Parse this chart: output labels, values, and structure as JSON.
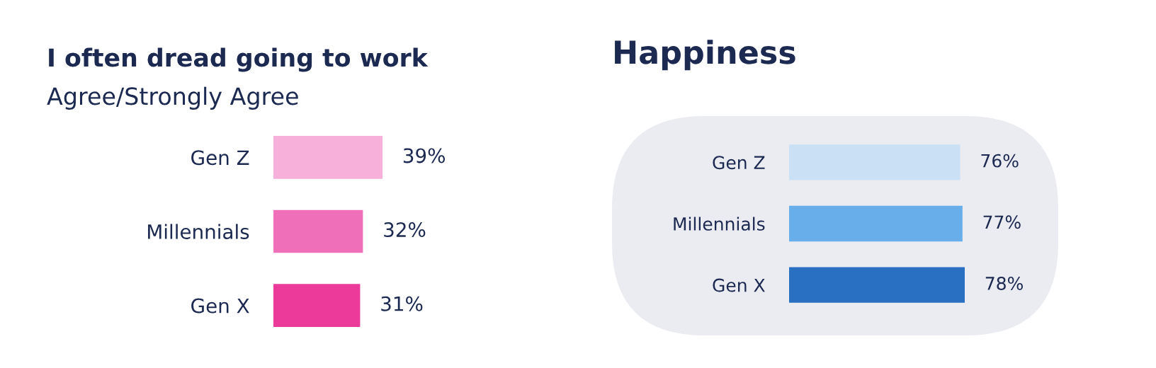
{
  "chart_data": [
    {
      "type": "bar",
      "orientation": "horizontal",
      "title": "I often dread going to work",
      "subtitle": "Agree/Strongly Agree",
      "categories": [
        "Gen Z",
        "Millennials",
        "Gen X"
      ],
      "values": [
        39,
        32,
        31
      ],
      "colors": [
        "#f7b0da",
        "#ef6fb9",
        "#ec3a9a"
      ],
      "value_labels": [
        "39%",
        "32%",
        "31%"
      ]
    },
    {
      "type": "bar",
      "orientation": "horizontal",
      "title": "Happiness",
      "categories": [
        "Gen Z",
        "Millennials",
        "Gen X"
      ],
      "values": [
        76,
        77,
        78
      ],
      "colors": [
        "#cae0f5",
        "#67aeea",
        "#2a70c2"
      ],
      "value_labels": [
        "76%",
        "77%",
        "78%"
      ]
    }
  ]
}
